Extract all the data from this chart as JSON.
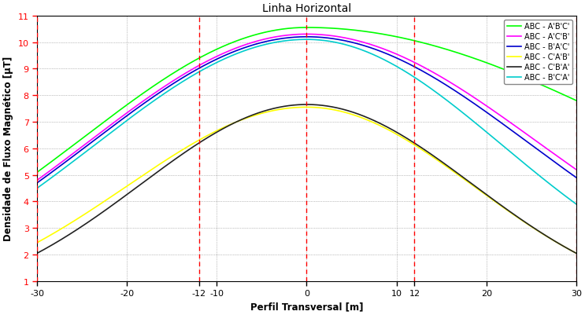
{
  "title": "Linha Horizontal",
  "xlabel": "Perfil Transversal [m]",
  "ylabel": "Densidade de Fluxo Magnético [µT]",
  "xlim": [
    -30,
    30
  ],
  "ylim": [
    1,
    11
  ],
  "yticks": [
    1,
    2,
    3,
    4,
    5,
    6,
    7,
    8,
    9,
    10,
    11
  ],
  "xticks": [
    -30,
    -20,
    -12,
    -10,
    0,
    10,
    12,
    20,
    30
  ],
  "red_xtick_vals": [
    -30,
    -12,
    12,
    30
  ],
  "red_vlines": [
    -30,
    -12,
    0,
    12,
    30
  ],
  "curves": [
    {
      "label": "ABC - A'B'C'",
      "color": "#00FF00",
      "peak": 10.55,
      "lv": 5.1,
      "rv": 7.8
    },
    {
      "label": "ABC - A'C'B'",
      "color": "#FF00FF",
      "peak": 10.3,
      "lv": 4.8,
      "rv": 5.2
    },
    {
      "label": "ABC - B'A'C'",
      "color": "#0000CC",
      "peak": 10.2,
      "lv": 4.7,
      "rv": 4.9
    },
    {
      "label": "ABC - C'A'B'",
      "color": "#FFFF00",
      "peak": 7.55,
      "lv": 2.45,
      "rv": 2.05
    },
    {
      "label": "ABC - C'B'A'",
      "color": "#222222",
      "peak": 7.65,
      "lv": 2.05,
      "rv": 2.05
    },
    {
      "label": "ABC - B'C'A'",
      "color": "#00CCCC",
      "peak": 10.1,
      "lv": 4.5,
      "rv": 3.9
    }
  ],
  "plot_order": [
    3,
    4,
    5,
    2,
    1,
    0
  ],
  "background_color": "#ffffff",
  "title_fontsize": 10,
  "label_fontsize": 8.5,
  "tick_fontsize": 8,
  "legend_fontsize": 7
}
